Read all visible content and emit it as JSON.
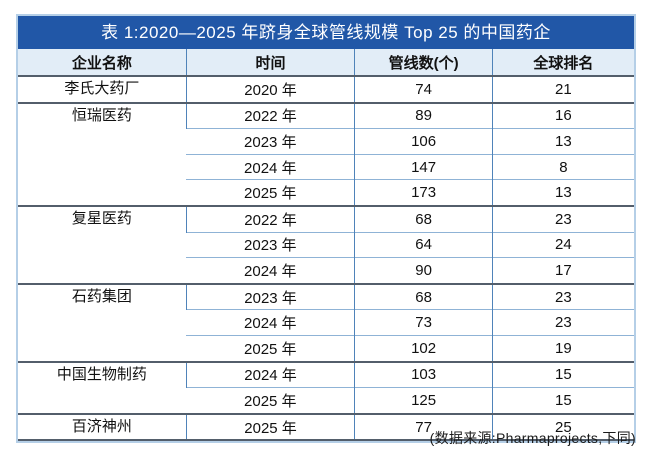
{
  "colors": {
    "title_bar_bg": "#2157a7",
    "title_text": "#ffffff",
    "header_bg": "#e2edf7",
    "body_bg": "#ffffff",
    "column_grid_blue": "#4f83b9",
    "row_line_light_blue": "#8fb3d6",
    "group_separator_dark": "#535e6b",
    "outer_border_light_blue": "#b5cfe7",
    "text": "#111111"
  },
  "table": {
    "title": "表 1:2020—2025 年跻身全球管线规模 Top 25 的中国药企",
    "columns": [
      "企业名称",
      "时间",
      "管线数(个)",
      "全球排名"
    ],
    "groups": [
      {
        "company": "李氏大药厂",
        "rows": [
          {
            "year": "2020 年",
            "pipelines": "74",
            "rank": "21"
          }
        ]
      },
      {
        "company": "恒瑞医药",
        "rows": [
          {
            "year": "2022 年",
            "pipelines": "89",
            "rank": "16"
          },
          {
            "year": "2023 年",
            "pipelines": "106",
            "rank": "13"
          },
          {
            "year": "2024 年",
            "pipelines": "147",
            "rank": "8"
          },
          {
            "year": "2025 年",
            "pipelines": "173",
            "rank": "13"
          }
        ]
      },
      {
        "company": "复星医药",
        "rows": [
          {
            "year": "2022 年",
            "pipelines": "68",
            "rank": "23"
          },
          {
            "year": "2023 年",
            "pipelines": "64",
            "rank": "24"
          },
          {
            "year": "2024 年",
            "pipelines": "90",
            "rank": "17"
          }
        ]
      },
      {
        "company": "石药集团",
        "rows": [
          {
            "year": "2023 年",
            "pipelines": "68",
            "rank": "23"
          },
          {
            "year": "2024 年",
            "pipelines": "73",
            "rank": "23"
          },
          {
            "year": "2025 年",
            "pipelines": "102",
            "rank": "19"
          }
        ]
      },
      {
        "company": "中国生物制药",
        "rows": [
          {
            "year": "2024 年",
            "pipelines": "103",
            "rank": "15"
          },
          {
            "year": "2025 年",
            "pipelines": "125",
            "rank": "15"
          }
        ]
      },
      {
        "company": "百济神州",
        "rows": [
          {
            "year": "2025 年",
            "pipelines": "77",
            "rank": "25"
          }
        ]
      }
    ],
    "source_note": "(数据来源:Pharmaprojects,下同)"
  },
  "chart_data": {
    "type": "table",
    "title": "表 1:2020—2025 年跻身全球管线规模 Top 25 的中国药企",
    "columns": [
      "企业名称",
      "时间",
      "管线数(个)",
      "全球排名"
    ],
    "rows": [
      [
        "李氏大药厂",
        "2020 年",
        74,
        21
      ],
      [
        "恒瑞医药",
        "2022 年",
        89,
        16
      ],
      [
        "恒瑞医药",
        "2023 年",
        106,
        13
      ],
      [
        "恒瑞医药",
        "2024 年",
        147,
        8
      ],
      [
        "恒瑞医药",
        "2025 年",
        173,
        13
      ],
      [
        "复星医药",
        "2022 年",
        68,
        23
      ],
      [
        "复星医药",
        "2023 年",
        64,
        24
      ],
      [
        "复星医药",
        "2024 年",
        90,
        17
      ],
      [
        "石药集团",
        "2023 年",
        68,
        23
      ],
      [
        "石药集团",
        "2024 年",
        73,
        23
      ],
      [
        "石药集团",
        "2025 年",
        102,
        19
      ],
      [
        "中国生物制药",
        "2024 年",
        103,
        15
      ],
      [
        "中国生物制药",
        "2025 年",
        125,
        15
      ],
      [
        "百济神州",
        "2025 年",
        77,
        25
      ]
    ],
    "source": "(数据来源:Pharmaprojects,下同)"
  }
}
